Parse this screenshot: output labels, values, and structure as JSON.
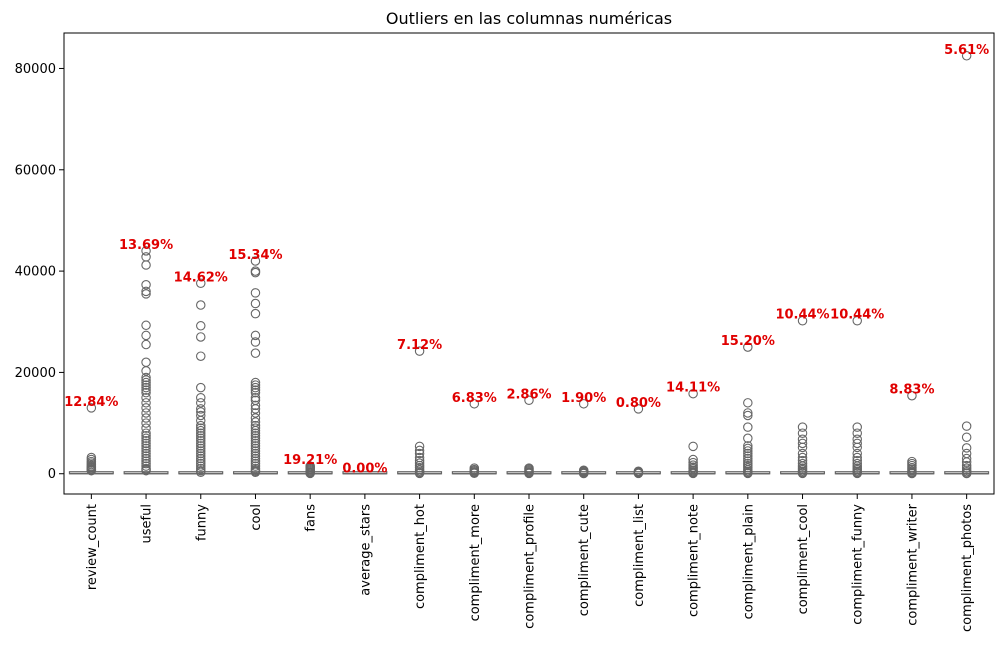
{
  "chart_data": {
    "type": "box",
    "title": "Outliers en las columnas numéricas",
    "xlabel": "",
    "ylabel": "",
    "ylim": [
      -4000,
      87000
    ],
    "yticks": [
      0,
      20000,
      40000,
      60000,
      80000
    ],
    "colors": {
      "annotation": "#e00000",
      "box": "#666666",
      "axis": "#000000"
    },
    "categories": [
      "review_count",
      "useful",
      "funny",
      "cool",
      "fans",
      "average_stars",
      "compliment_hot",
      "compliment_more",
      "compliment_profile",
      "compliment_cute",
      "compliment_list",
      "compliment_note",
      "compliment_plain",
      "compliment_cool",
      "compliment_funny",
      "compliment_writer",
      "compliment_photos"
    ],
    "outlier_percent_labels": [
      "12.84%",
      "13.69%",
      "14.62%",
      "15.34%",
      "19.21%",
      "0.00%",
      "7.12%",
      "6.83%",
      "2.86%",
      "1.90%",
      "0.80%",
      "14.11%",
      "15.20%",
      "10.44%",
      "10.44%",
      "8.83%",
      "5.61%"
    ],
    "box_stats": [
      {
        "q1": 0,
        "median": 20,
        "q3": 150
      },
      {
        "q1": 0,
        "median": 10,
        "q3": 200
      },
      {
        "q1": 0,
        "median": 2,
        "q3": 40
      },
      {
        "q1": 0,
        "median": 2,
        "q3": 60
      },
      {
        "q1": 0,
        "median": 0,
        "q3": 3
      },
      {
        "q1": 3.1,
        "median": 3.8,
        "q3": 4.4
      },
      {
        "q1": 0,
        "median": 0,
        "q3": 3
      },
      {
        "q1": 0,
        "median": 0,
        "q3": 1
      },
      {
        "q1": 0,
        "median": 0,
        "q3": 1
      },
      {
        "q1": 0,
        "median": 0,
        "q3": 1
      },
      {
        "q1": 0,
        "median": 0,
        "q3": 0
      },
      {
        "q1": 0,
        "median": 0,
        "q3": 3
      },
      {
        "q1": 0,
        "median": 0,
        "q3": 5
      },
      {
        "q1": 0,
        "median": 0,
        "q3": 5
      },
      {
        "q1": 0,
        "median": 0,
        "q3": 5
      },
      {
        "q1": 0,
        "median": 0,
        "q3": 2
      },
      {
        "q1": 0,
        "median": 0,
        "q3": 1
      }
    ],
    "outliers": [
      [
        13000,
        3200,
        2800,
        2400,
        2100,
        1800,
        1500,
        1300,
        1100,
        900,
        800,
        700,
        600
      ],
      [
        44000,
        42800,
        41200,
        37300,
        36000,
        35500,
        29300,
        27300,
        25500,
        22000,
        20300,
        19000,
        18500,
        18000,
        17500,
        17000,
        16500,
        16000,
        15000,
        14000,
        13000,
        12000,
        11000,
        10000,
        9000,
        8000,
        7500,
        7000,
        6500,
        6000,
        5500,
        5000,
        4500,
        4000,
        3500,
        3000,
        2500,
        2000,
        1500,
        1000,
        800,
        600
      ],
      [
        37600,
        33300,
        29200,
        27000,
        23200,
        17000,
        15000,
        14000,
        12800,
        12200,
        11500,
        10500,
        9500,
        9000,
        8500,
        8000,
        7500,
        7000,
        6500,
        6000,
        5500,
        5000,
        4500,
        4000,
        3500,
        3000,
        2500,
        2000,
        1500,
        1000,
        600,
        300
      ],
      [
        42000,
        40000,
        39700,
        35700,
        33600,
        31600,
        27300,
        26000,
        23800,
        18000,
        17500,
        17000,
        16500,
        16000,
        15000,
        14500,
        13500,
        12800,
        12000,
        11000,
        10200,
        9500,
        9000,
        8500,
        8000,
        7500,
        7000,
        6500,
        6000,
        5500,
        5000,
        4500,
        4000,
        3500,
        3000,
        2500,
        2000,
        1500,
        1000,
        700,
        500,
        300
      ],
      [
        1500,
        1300,
        1100,
        900,
        700,
        500,
        300,
        150,
        60
      ],
      [],
      [
        24200,
        5400,
        4600,
        4000,
        3200,
        2600,
        2100,
        1600,
        1200,
        800,
        500,
        250,
        80
      ],
      [
        13800,
        1100,
        800,
        600,
        400,
        250,
        100
      ],
      [
        14500,
        1100,
        900,
        700,
        500,
        300,
        150,
        60
      ],
      [
        13800,
        700,
        550,
        400,
        250,
        120,
        40
      ],
      [
        12800,
        500,
        350,
        250,
        150,
        60
      ],
      [
        15800,
        5400,
        2800,
        2200,
        1700,
        1300,
        1000,
        700,
        500,
        300,
        150,
        60
      ],
      [
        25000,
        14000,
        12000,
        11500,
        9200,
        7000,
        5500,
        5000,
        4500,
        4000,
        3500,
        3000,
        2500,
        2000,
        1600,
        1200,
        800,
        500,
        250,
        80
      ],
      [
        30200,
        9200,
        8000,
        6800,
        6000,
        5200,
        4000,
        3200,
        2600,
        2000,
        1500,
        1100,
        800,
        500,
        250,
        80
      ],
      [
        30200,
        9200,
        8000,
        6800,
        6000,
        5200,
        4000,
        3200,
        2600,
        2000,
        1500,
        1100,
        800,
        500,
        250,
        80
      ],
      [
        15400,
        2400,
        2000,
        1600,
        1200,
        900,
        600,
        350,
        150,
        50
      ],
      [
        82500,
        9400,
        7200,
        5100,
        4000,
        3000,
        2300,
        1600,
        1100,
        700,
        400,
        150,
        50
      ]
    ]
  }
}
